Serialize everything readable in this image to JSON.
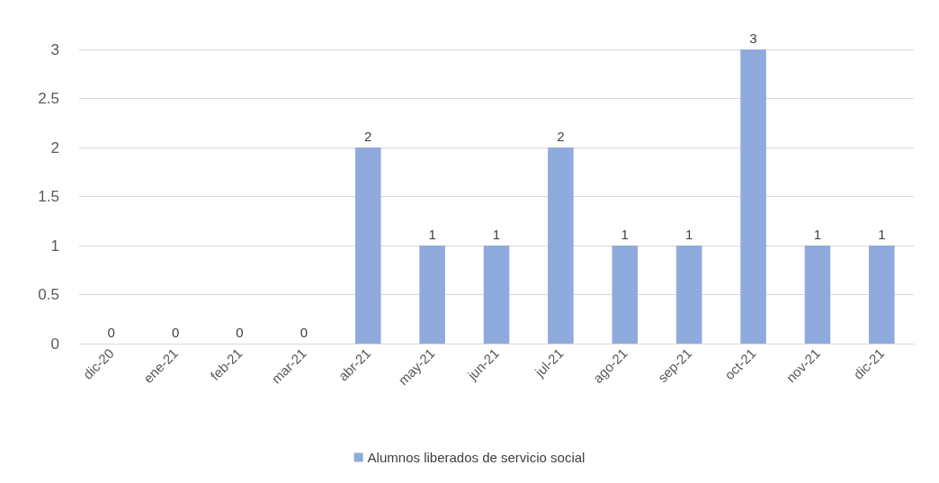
{
  "chart_data": {
    "type": "bar",
    "categories": [
      "dic-20",
      "ene-21",
      "feb-21",
      "mar-21",
      "abr-21",
      "may-21",
      "jun-21",
      "jul-21",
      "ago-21",
      "sep-21",
      "oct-21",
      "nov-21",
      "dic-21"
    ],
    "series": [
      {
        "name": "Alumnos liberados de servicio social",
        "color": "#8faadc",
        "values": [
          0,
          0,
          0,
          0,
          2,
          1,
          1,
          2,
          1,
          1,
          3,
          1,
          1
        ]
      }
    ],
    "ylim": [
      0,
      3
    ],
    "yticks": [
      0,
      0.5,
      1,
      1.5,
      2,
      2.5,
      3
    ],
    "grid": "y",
    "legend": "bottom",
    "data_labels": true
  }
}
